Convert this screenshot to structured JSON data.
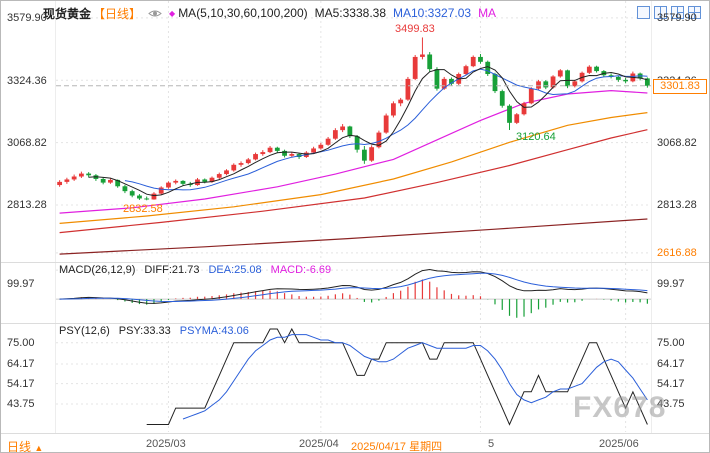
{
  "header": {
    "symbol": "现货黄金",
    "period": "【日线】",
    "ma_group": "MA(5,10,30,60,100,200)",
    "ma5_label": "MA5:3338.38",
    "ma10_label": "MA10:3327.03",
    "ma_extra": "MA"
  },
  "icons": {
    "eye": "eye-icon",
    "indicator_marker": "diamond-icon",
    "layouts": [
      "layout-single",
      "layout-split-2",
      "layout-split-3",
      "layout-split-4"
    ]
  },
  "axes": {
    "left": [
      "3579.90",
      "3324.36",
      "3068.82",
      "2813.28"
    ],
    "right": [
      "3579.90",
      "3324.36",
      "3068.82",
      "2813.28",
      "2616.88"
    ],
    "current_price": "3301.83",
    "macd_left": "99.97",
    "macd_right": "99.97",
    "psy_left": [
      "75.00",
      "64.17",
      "54.17",
      "43.75"
    ],
    "psy_right": [
      "75.00",
      "64.17",
      "54.17",
      "43.75"
    ]
  },
  "macd_header": {
    "name": "MACD(26,12,9)",
    "diff": "DIFF:21.73",
    "dea": "DEA:25.08",
    "macd": "MACD:-6.69"
  },
  "psy_header": {
    "name": "PSY(12,6)",
    "psy": "PSY:33.33",
    "psyma": "PSYMA:43.06"
  },
  "annotations": {
    "high": "3499.83",
    "low_march": "2832.58",
    "low_may": "3120.64"
  },
  "bottom": {
    "period_label": "日线",
    "period_arrow": "▲",
    "labels": [
      "2025/03",
      "2025/04",
      "5",
      "2025/06"
    ],
    "selected_date": "2025/04/17 星期四"
  },
  "watermark": {
    "text": "FX678"
  },
  "chart_data": {
    "type": "candlestick",
    "title": "现货黄金 日线",
    "legend": [
      "MA5",
      "MA10",
      "MA30",
      "MA60",
      "MA100",
      "MA200"
    ],
    "indicator_values": {
      "ma5": 3338.38,
      "ma10": 3327.03,
      "diff": 21.73,
      "dea": 25.08,
      "macd": -6.69,
      "psy": 33.33,
      "psyma": 43.06
    },
    "colors": {
      "up": "#e83a3a",
      "down": "#18a038",
      "ma5": "#222222",
      "ma10": "#2b5fd9",
      "ma30": "#e020e0",
      "ma60": "#f08c00",
      "ma100": "#d03030",
      "ma200": "#8b2323",
      "diff": "#222222",
      "dea": "#2b5fd9",
      "psy": "#222222",
      "psyma": "#2b5fd9",
      "accent": "#ff7e00",
      "grid": "#e4e4e4"
    },
    "month_tick_indices": [
      15,
      36,
      58,
      78
    ],
    "main": {
      "y_range": [
        2592,
        3600
      ],
      "gridline_values": [
        3579.9,
        3324.36,
        3068.82,
        2813.28,
        2616.88
      ],
      "current_price": 3301.83,
      "high_point": 3499.83,
      "low_points": [
        2832.58,
        3120.64
      ],
      "candles": [
        [
          2895,
          2915,
          2888,
          2908
        ],
        [
          2908,
          2925,
          2900,
          2918
        ],
        [
          2918,
          2938,
          2912,
          2930
        ],
        [
          2930,
          2950,
          2924,
          2942
        ],
        [
          2942,
          2948,
          2926,
          2935
        ],
        [
          2935,
          2940,
          2912,
          2920
        ],
        [
          2920,
          2928,
          2898,
          2905
        ],
        [
          2905,
          2922,
          2900,
          2916
        ],
        [
          2916,
          2918,
          2884,
          2890
        ],
        [
          2890,
          2896,
          2862,
          2870
        ],
        [
          2870,
          2876,
          2845,
          2852
        ],
        [
          2852,
          2858,
          2834,
          2840
        ],
        [
          2840,
          2848,
          2832.58,
          2836
        ],
        [
          2836,
          2866,
          2835,
          2860
        ],
        [
          2860,
          2890,
          2856,
          2885
        ],
        [
          2885,
          2910,
          2880,
          2905
        ],
        [
          2905,
          2918,
          2898,
          2912
        ],
        [
          2912,
          2915,
          2893,
          2900
        ],
        [
          2900,
          2908,
          2888,
          2895
        ],
        [
          2895,
          2924,
          2892,
          2918
        ],
        [
          2918,
          2922,
          2902,
          2908
        ],
        [
          2908,
          2930,
          2904,
          2925
        ],
        [
          2925,
          2946,
          2920,
          2940
        ],
        [
          2940,
          2960,
          2935,
          2955
        ],
        [
          2955,
          2984,
          2950,
          2978
        ],
        [
          2978,
          2992,
          2970,
          2985
        ],
        [
          2985,
          3006,
          2980,
          3000
        ],
        [
          3000,
          3028,
          2996,
          3022
        ],
        [
          3022,
          3038,
          3015,
          3030
        ],
        [
          3030,
          3055,
          3026,
          3048
        ],
        [
          3048,
          3052,
          3028,
          3035
        ],
        [
          3035,
          3040,
          3008,
          3015
        ],
        [
          3015,
          3030,
          3010,
          3022
        ],
        [
          3022,
          3026,
          3002,
          3010
        ],
        [
          3010,
          3034,
          3006,
          3028
        ],
        [
          3028,
          3052,
          3024,
          3045
        ],
        [
          3045,
          3068,
          3040,
          3060
        ],
        [
          3060,
          3092,
          3056,
          3085
        ],
        [
          3085,
          3128,
          3080,
          3120
        ],
        [
          3120,
          3145,
          3112,
          3135
        ],
        [
          3135,
          3138,
          3088,
          3095
        ],
        [
          3095,
          3100,
          3028,
          3040
        ],
        [
          3040,
          3055,
          2982,
          2995
        ],
        [
          2995,
          3058,
          2990,
          3050
        ],
        [
          3050,
          3118,
          3045,
          3110
        ],
        [
          3110,
          3188,
          3105,
          3180
        ],
        [
          3180,
          3238,
          3172,
          3230
        ],
        [
          3230,
          3252,
          3218,
          3245
        ],
        [
          3245,
          3338,
          3240,
          3330
        ],
        [
          3330,
          3428,
          3325,
          3420
        ],
        [
          3420,
          3499.83,
          3410,
          3430
        ],
        [
          3430,
          3440,
          3360,
          3370
        ],
        [
          3370,
          3378,
          3282,
          3290
        ],
        [
          3290,
          3338,
          3285,
          3330
        ],
        [
          3330,
          3336,
          3302,
          3310
        ],
        [
          3310,
          3356,
          3305,
          3350
        ],
        [
          3350,
          3388,
          3344,
          3382
        ],
        [
          3382,
          3426,
          3378,
          3420
        ],
        [
          3420,
          3432,
          3392,
          3400
        ],
        [
          3400,
          3405,
          3342,
          3350
        ],
        [
          3350,
          3355,
          3272,
          3280
        ],
        [
          3280,
          3286,
          3212,
          3220
        ],
        [
          3220,
          3226,
          3120.64,
          3150
        ],
        [
          3150,
          3190,
          3145,
          3185
        ],
        [
          3185,
          3236,
          3180,
          3230
        ],
        [
          3230,
          3296,
          3226,
          3290
        ],
        [
          3290,
          3326,
          3285,
          3320
        ],
        [
          3320,
          3325,
          3288,
          3295
        ],
        [
          3295,
          3345,
          3290,
          3340
        ],
        [
          3340,
          3370,
          3335,
          3365
        ],
        [
          3365,
          3368,
          3292,
          3300
        ],
        [
          3300,
          3326,
          3295,
          3320
        ],
        [
          3320,
          3360,
          3315,
          3355
        ],
        [
          3355,
          3386,
          3350,
          3380
        ],
        [
          3380,
          3384,
          3356,
          3362
        ],
        [
          3362,
          3366,
          3338,
          3345
        ],
        [
          3345,
          3352,
          3332,
          3338
        ],
        [
          3338,
          3342,
          3318,
          3326
        ],
        [
          3326,
          3334,
          3312,
          3320
        ],
        [
          3320,
          3360,
          3316,
          3352
        ],
        [
          3352,
          3356,
          3324,
          3332
        ],
        [
          3332,
          3336,
          3294,
          3301.83
        ]
      ],
      "overlays": [
        {
          "name": "MA200",
          "color": "#8b2323",
          "points": [
            [
              0,
              2612
            ],
            [
              20,
              2642
            ],
            [
              40,
              2676
            ],
            [
              60,
              2714
            ],
            [
              81,
              2756
            ]
          ]
        },
        {
          "name": "MA100",
          "color": "#d03030",
          "points": [
            [
              0,
              2700
            ],
            [
              14,
              2742
            ],
            [
              28,
              2788
            ],
            [
              42,
              2842
            ],
            [
              52,
              2905
            ],
            [
              62,
              2975
            ],
            [
              70,
              3040
            ],
            [
              76,
              3088
            ],
            [
              81,
              3122
            ]
          ]
        },
        {
          "name": "MA60",
          "color": "#f08c00",
          "points": [
            [
              0,
              2738
            ],
            [
              12,
              2768
            ],
            [
              24,
              2806
            ],
            [
              36,
              2856
            ],
            [
              46,
              2920
            ],
            [
              54,
              2990
            ],
            [
              62,
              3070
            ],
            [
              70,
              3140
            ],
            [
              76,
              3172
            ],
            [
              81,
              3192
            ]
          ]
        },
        {
          "name": "MA30",
          "color": "#e020e0",
          "points": [
            [
              0,
              2780
            ],
            [
              10,
              2802
            ],
            [
              20,
              2838
            ],
            [
              30,
              2888
            ],
            [
              38,
              2940
            ],
            [
              46,
              3000
            ],
            [
              52,
              3080
            ],
            [
              58,
              3160
            ],
            [
              64,
              3230
            ],
            [
              70,
              3268
            ],
            [
              76,
              3282
            ],
            [
              81,
              3272
            ]
          ]
        }
      ]
    },
    "macd": {
      "params": [
        26,
        12,
        9
      ],
      "gridline_value": 99.97
    },
    "psy": {
      "params": [
        12,
        6
      ],
      "y_range": [
        30,
        82
      ],
      "gridline_values": [
        75.0,
        64.17,
        54.17,
        43.75
      ]
    }
  }
}
